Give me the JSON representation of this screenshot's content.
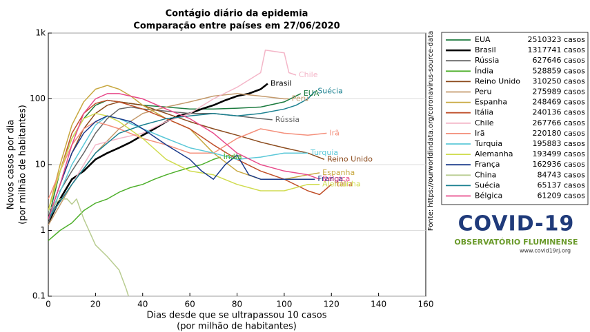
{
  "chart_data": {
    "type": "line",
    "title": [
      "Contágio diário da epidemia",
      "Comparação entre países em 27/06/2020"
    ],
    "x_label": [
      "Dias desde que se ultrapassou 10 casos",
      "(por milhão de habitantes)"
    ],
    "y_label": [
      "Novos casos por dia",
      "(por milhão de habitantes)"
    ],
    "source": "Fonte: https://ourworldindata.org/coronavirus-source-data",
    "xlim": [
      0,
      160
    ],
    "xticks": [
      0,
      20,
      40,
      60,
      80,
      100,
      120,
      140,
      160
    ],
    "ylim": [
      0.1,
      1000
    ],
    "log_y": true,
    "grid": true,
    "yticks": [
      0.1,
      1,
      10,
      100,
      {
        "value": 1000,
        "label": "1k"
      }
    ],
    "legend": "right",
    "series": [
      {
        "name": "EUA",
        "color": "#1b7a3e",
        "total": {
          "value": 2510323,
          "label": "2510323 casos"
        },
        "x": [
          0,
          5,
          10,
          15,
          20,
          25,
          30,
          40,
          50,
          60,
          70,
          80,
          90,
          100,
          107
        ],
        "values": [
          1.5,
          8,
          25,
          50,
          80,
          95,
          90,
          80,
          75,
          70,
          70,
          72,
          75,
          90,
          120
        ]
      },
      {
        "name": "Brasil",
        "color": "#000000",
        "width": 2.6,
        "total": {
          "value": 1317741,
          "label": "1317741 casos"
        },
        "x": [
          0,
          5,
          10,
          15,
          20,
          25,
          30,
          35,
          40,
          45,
          50,
          55,
          60,
          65,
          70,
          75,
          80,
          85,
          90,
          93
        ],
        "values": [
          1.3,
          3,
          6,
          8,
          12,
          15,
          18,
          22,
          28,
          35,
          45,
          55,
          60,
          70,
          80,
          95,
          110,
          120,
          140,
          170
        ]
      },
      {
        "name": "Rússia",
        "color": "#666666",
        "total": {
          "value": 627646,
          "label": "627646 casos"
        },
        "x": [
          0,
          5,
          10,
          15,
          20,
          25,
          30,
          35,
          40,
          50,
          60,
          70,
          80,
          90,
          95
        ],
        "values": [
          1.3,
          4,
          8,
          15,
          30,
          50,
          70,
          75,
          70,
          65,
          60,
          60,
          55,
          50,
          48
        ]
      },
      {
        "name": "Índia",
        "color": "#4daf2a",
        "total": {
          "value": 528859,
          "label": "528859 casos"
        },
        "x": [
          0,
          5,
          10,
          15,
          20,
          25,
          30,
          35,
          40,
          45,
          50,
          55,
          60,
          65,
          70,
          73
        ],
        "values": [
          0.7,
          1,
          1.3,
          2,
          2.6,
          3,
          3.8,
          4.5,
          5,
          6,
          7,
          8,
          9,
          10,
          12,
          13
        ]
      },
      {
        "name": "Reino Unido",
        "color": "#8b4a1c",
        "total": {
          "value": 310250,
          "label": "310250 casos"
        },
        "x": [
          0,
          5,
          10,
          15,
          20,
          25,
          30,
          35,
          40,
          50,
          60,
          70,
          80,
          90,
          100,
          110,
          117
        ],
        "values": [
          1.5,
          5,
          15,
          35,
          60,
          80,
          90,
          85,
          80,
          60,
          45,
          35,
          28,
          22,
          18,
          15,
          12
        ]
      },
      {
        "name": "Peru",
        "color": "#c49a6c",
        "total": {
          "value": 275989,
          "label": "275989 casos"
        },
        "x": [
          0,
          10,
          20,
          30,
          40,
          50,
          60,
          70,
          80,
          90,
          100,
          102
        ],
        "values": [
          1.2,
          5,
          15,
          35,
          60,
          75,
          90,
          110,
          120,
          110,
          100,
          100
        ]
      },
      {
        "name": "Espanha",
        "color": "#c8a840",
        "total": {
          "value": 248469,
          "label": "248469 casos"
        },
        "x": [
          0,
          5,
          10,
          15,
          20,
          25,
          30,
          35,
          40,
          50,
          60,
          70,
          80,
          90,
          100,
          110,
          115
        ],
        "values": [
          2,
          10,
          40,
          90,
          140,
          160,
          140,
          110,
          80,
          50,
          35,
          15,
          8,
          6,
          6,
          7,
          7.5
        ]
      },
      {
        "name": "Itália",
        "color": "#c0502a",
        "total": {
          "value": 240136,
          "label": "240136 casos"
        },
        "x": [
          0,
          5,
          10,
          15,
          20,
          25,
          30,
          40,
          50,
          60,
          70,
          80,
          90,
          100,
          110,
          115,
          120
        ],
        "values": [
          2,
          8,
          30,
          60,
          85,
          95,
          90,
          70,
          50,
          35,
          20,
          12,
          8,
          6,
          4,
          3.5,
          5
        ]
      },
      {
        "name": "Chile",
        "color": "#f4b6c8",
        "total": {
          "value": 267766,
          "label": "267766 casos"
        },
        "x": [
          0,
          10,
          20,
          30,
          40,
          50,
          60,
          70,
          80,
          90,
          92,
          100,
          102,
          105
        ],
        "values": [
          1.5,
          5,
          20,
          25,
          30,
          45,
          60,
          100,
          150,
          250,
          550,
          500,
          250,
          230
        ]
      },
      {
        "name": "Irã",
        "color": "#f4907c",
        "total": {
          "value": 220180,
          "label": "220180 casos"
        },
        "x": [
          0,
          5,
          10,
          15,
          20,
          25,
          30,
          40,
          50,
          60,
          70,
          80,
          90,
          100,
          110,
          118
        ],
        "values": [
          3,
          8,
          20,
          35,
          45,
          40,
          35,
          25,
          20,
          15,
          15,
          25,
          35,
          30,
          28,
          30
        ]
      },
      {
        "name": "Turquia",
        "color": "#5bc8d8",
        "total": {
          "value": 195883,
          "label": "195883 casos"
        },
        "x": [
          0,
          10,
          20,
          25,
          30,
          40,
          50,
          60,
          70,
          80,
          90,
          100,
          110
        ],
        "values": [
          1.5,
          10,
          40,
          55,
          50,
          35,
          25,
          18,
          15,
          12,
          13,
          15,
          15
        ]
      },
      {
        "name": "Alemanha",
        "color": "#d0dc50",
        "total": {
          "value": 193499,
          "label": "193499 casos"
        },
        "x": [
          0,
          5,
          10,
          15,
          20,
          25,
          30,
          40,
          50,
          60,
          70,
          80,
          90,
          100,
          110,
          115
        ],
        "values": [
          2,
          8,
          25,
          50,
          60,
          55,
          45,
          25,
          12,
          8,
          7,
          5,
          4,
          4,
          5,
          5
        ]
      },
      {
        "name": "França",
        "color": "#1a3a8a",
        "total": {
          "value": 162936,
          "label": "162936 casos"
        },
        "x": [
          0,
          5,
          10,
          15,
          20,
          25,
          30,
          35,
          40,
          50,
          60,
          65,
          70,
          75,
          80,
          85,
          90,
          100,
          110,
          113
        ],
        "values": [
          1.5,
          5,
          15,
          30,
          45,
          55,
          50,
          45,
          35,
          20,
          12,
          8,
          6,
          10,
          14,
          7,
          6,
          6,
          6,
          6
        ]
      },
      {
        "name": "China",
        "color": "#b8cc90",
        "total": {
          "value": 84743,
          "label": "84743 casos"
        },
        "x": [
          0,
          5,
          8,
          10,
          12,
          15,
          20,
          25,
          30,
          33,
          34
        ],
        "values": [
          2,
          3,
          3,
          2.5,
          3,
          1.5,
          0.6,
          0.4,
          0.25,
          0.13,
          0.1
        ]
      },
      {
        "name": "Suécia",
        "color": "#1a8090",
        "total": {
          "value": 65137,
          "label": "65137 casos"
        },
        "x": [
          0,
          10,
          20,
          30,
          40,
          50,
          60,
          70,
          80,
          90,
          100,
          105,
          110,
          113
        ],
        "values": [
          1.5,
          5,
          15,
          30,
          40,
          50,
          55,
          60,
          55,
          60,
          70,
          80,
          100,
          130
        ]
      },
      {
        "name": "Bélgica",
        "color": "#e84a8a",
        "total": {
          "value": 61209,
          "label": "61209 casos"
        },
        "x": [
          0,
          5,
          10,
          15,
          20,
          25,
          30,
          40,
          50,
          60,
          70,
          80,
          90,
          100,
          110,
          115
        ],
        "values": [
          1.5,
          5,
          20,
          60,
          100,
          120,
          120,
          100,
          70,
          50,
          30,
          15,
          10,
          8,
          7,
          6
        ]
      }
    ]
  },
  "logo": {
    "title": "COVID-19",
    "subtitle": "OBSERVATÓRIO FLUMINENSE",
    "url": "www.covid19rj.org"
  }
}
